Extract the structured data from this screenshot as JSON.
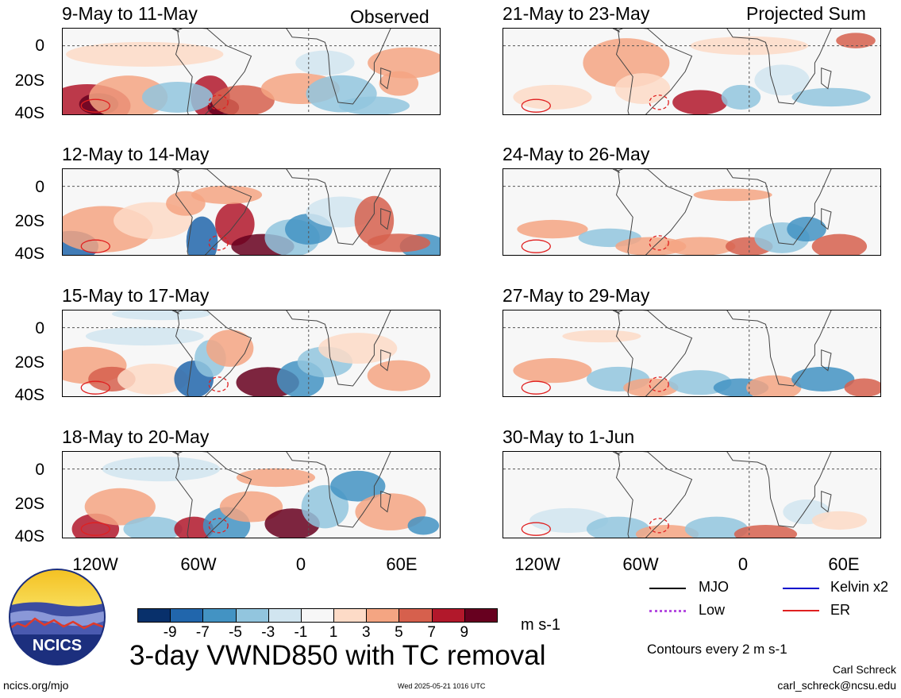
{
  "left_column_label": "Observed",
  "right_column_label": "Projected Sum",
  "panels_left": [
    {
      "title": "9-May to 11-May"
    },
    {
      "title": "12-May to 14-May"
    },
    {
      "title": "15-May to 17-May"
    },
    {
      "title": "18-May to 20-May"
    }
  ],
  "panels_right": [
    {
      "title": "21-May to 23-May"
    },
    {
      "title": "24-May to 26-May"
    },
    {
      "title": "27-May to 29-May"
    },
    {
      "title": "30-May to 1-Jun"
    }
  ],
  "y_ticks": [
    "0",
    "20S",
    "40S"
  ],
  "x_ticks": [
    "120W",
    "60W",
    "0",
    "60E"
  ],
  "colorbar": {
    "colors": [
      "#08306b",
      "#2166ac",
      "#4393c3",
      "#92c5de",
      "#d1e5f0",
      "#f7f7f7",
      "#fddbc7",
      "#f4a582",
      "#d6604d",
      "#b2182b",
      "#67001f"
    ],
    "labels": [
      "-9",
      "-7",
      "-5",
      "-3",
      "-1",
      "1",
      "3",
      "5",
      "7",
      "9"
    ],
    "unit": "m s-1"
  },
  "main_title": "3-day VWND850 with TC removal",
  "legend": [
    {
      "label": "MJO",
      "color": "#000000"
    },
    {
      "label": "Kelvin x2",
      "color": "#0000cc"
    },
    {
      "label": "Low",
      "color": "#b44be0"
    },
    {
      "label": "ER",
      "color": "#e02020"
    }
  ],
  "contour_note": "Contours every 2 m s-1",
  "author": "Carl Schreck",
  "email": "carl_schreck@ncsu.edu",
  "website": "ncics.org/mjo",
  "timestamp": "Wed 2025-05-21 1016 UTC",
  "logo_text": "NCICS"
}
